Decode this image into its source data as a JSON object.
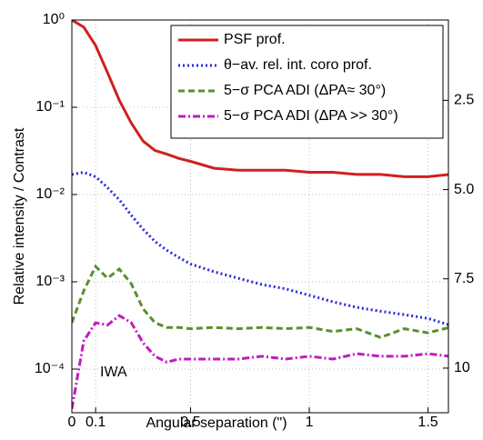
{
  "chart_data": {
    "type": "line",
    "xlabel": "Angular separation (\")",
    "ylabel": "Relative intensity / Contrast",
    "annotation": "IWA",
    "x": [
      0,
      0.05,
      0.1,
      0.15,
      0.2,
      0.25,
      0.3,
      0.35,
      0.4,
      0.45,
      0.5,
      0.6,
      0.7,
      0.8,
      0.9,
      1.0,
      1.1,
      1.2,
      1.3,
      1.4,
      1.5,
      1.59
    ],
    "series": [
      {
        "name": "PSF prof.",
        "color": "#d11f1f",
        "dash": "none",
        "values": [
          1.0,
          0.83,
          0.51,
          0.25,
          0.12,
          0.066,
          0.041,
          0.032,
          0.029,
          0.026,
          0.024,
          0.02,
          0.019,
          0.019,
          0.019,
          0.018,
          0.018,
          0.017,
          0.017,
          0.016,
          0.016,
          0.017
        ]
      },
      {
        "name": "θ−av. rel. int. coro prof.",
        "color": "#2a2adb",
        "dash": "2 3",
        "values": [
          0.017,
          0.018,
          0.016,
          0.012,
          0.0087,
          0.0058,
          0.004,
          0.0029,
          0.0023,
          0.0019,
          0.0016,
          0.0013,
          0.0011,
          0.00093,
          0.00083,
          0.0007,
          0.00059,
          0.00051,
          0.00046,
          0.00042,
          0.00038,
          0.00032
        ]
      },
      {
        "name": "5−σ PCA ADI (ΔPA≈ 30°)",
        "color": "#5a8f2e",
        "dash": "7 4",
        "values": [
          0.00034,
          0.00079,
          0.0015,
          0.0011,
          0.0014,
          0.00095,
          0.00049,
          0.00034,
          0.0003,
          0.0003,
          0.00029,
          0.0003,
          0.00029,
          0.0003,
          0.00029,
          0.0003,
          0.00027,
          0.00029,
          0.00023,
          0.00029,
          0.00026,
          0.0003
        ]
      },
      {
        "name": "5−σ PCA ADI (ΔPA >> 30°)",
        "color": "#c21bc2",
        "dash": "8 3 2 3",
        "values": [
          3.5e-05,
          0.00021,
          0.00034,
          0.00032,
          0.00041,
          0.00034,
          0.0002,
          0.00014,
          0.00012,
          0.00013,
          0.00013,
          0.00013,
          0.00013,
          0.00014,
          0.00013,
          0.00014,
          0.00013,
          0.00015,
          0.00014,
          0.00014,
          0.00015,
          0.00014
        ]
      }
    ],
    "xlim": [
      0,
      1.586
    ],
    "xticks": [
      0,
      0.1,
      0.5,
      1,
      1.5
    ],
    "ylim": [
      3.16e-05,
      1
    ],
    "log_y": true,
    "yticks": [
      {
        "value": 1,
        "label": "10⁰"
      },
      {
        "value": 0.1,
        "label": "10⁻¹"
      },
      {
        "value": 0.01,
        "label": "10⁻²"
      },
      {
        "value": 0.001,
        "label": "10⁻³"
      },
      {
        "value": 0.0001,
        "label": "10⁻⁴"
      }
    ],
    "y2lim": [
      0.25,
      11.25
    ],
    "y2_inverted": true,
    "y2ticks": [
      2.5,
      {
        "value": 5,
        "label": "5.0"
      },
      7.5,
      10
    ],
    "grid": true,
    "legend": "upper right"
  }
}
